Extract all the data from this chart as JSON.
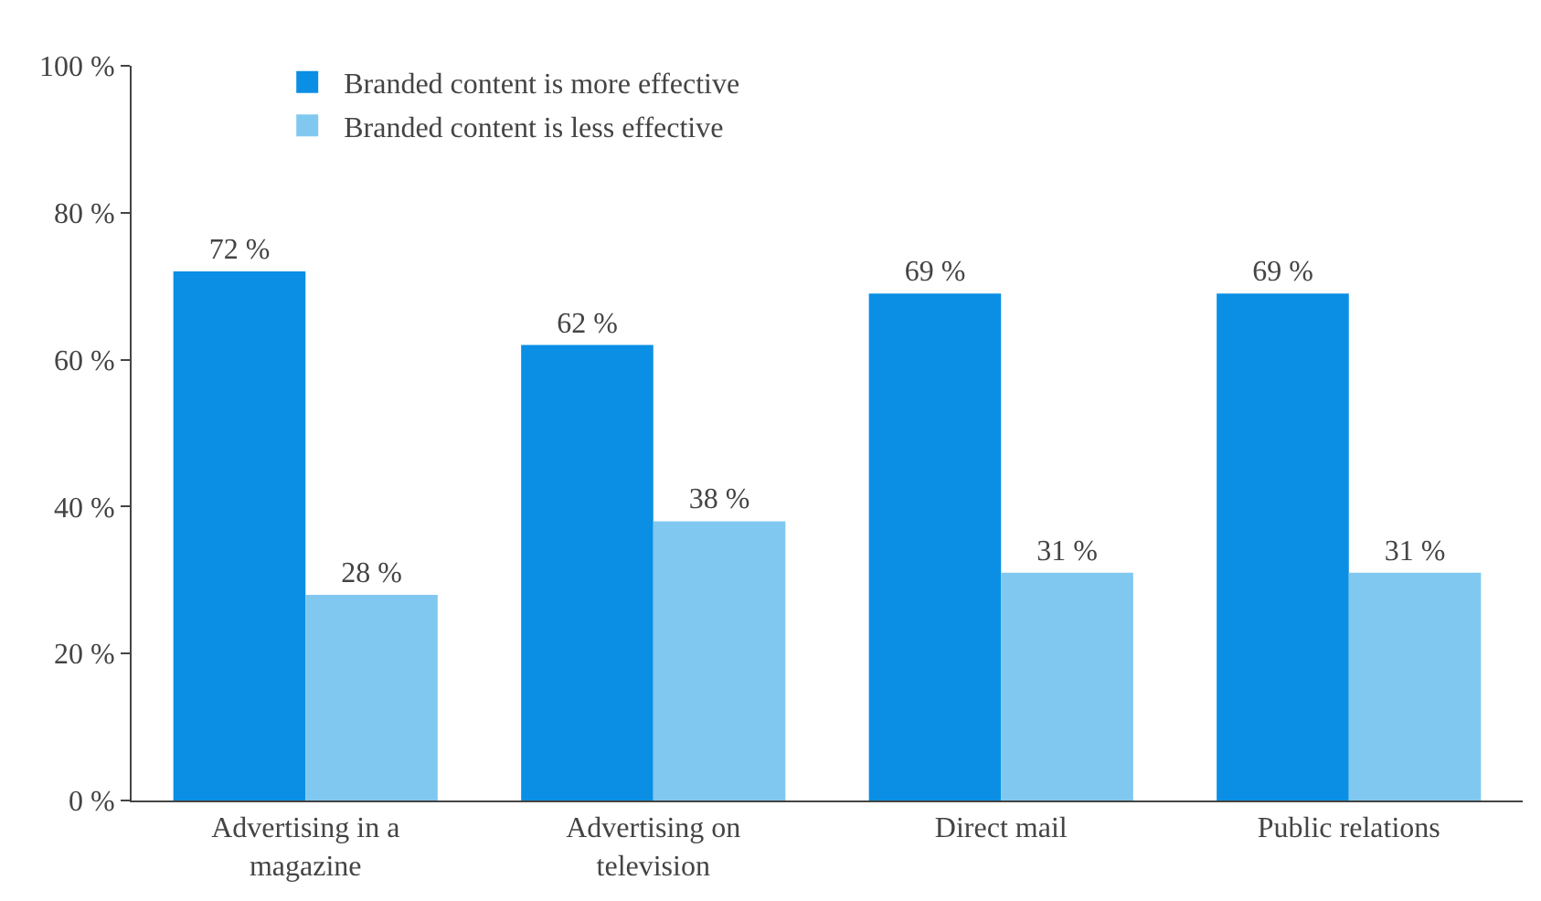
{
  "chart_data": {
    "type": "bar",
    "categories": [
      "Advertising in a magazine",
      "Advertising on television",
      "Direct mail",
      "Public relations"
    ],
    "series": [
      {
        "name": "Branded content is more effective",
        "color": "#0a8fe5",
        "values": [
          72,
          62,
          69,
          69
        ],
        "value_labels": [
          "72 %",
          "62 %",
          "69 %",
          "69 %"
        ]
      },
      {
        "name": "Branded content is less effective",
        "color": "#80c8f0",
        "values": [
          28,
          38,
          31,
          31
        ],
        "value_labels": [
          "28 %",
          "38 %",
          "31 %",
          "31 %"
        ]
      }
    ],
    "ylim": [
      0,
      100
    ],
    "yticks": [
      {
        "value": 0,
        "label": "0 %"
      },
      {
        "value": 20,
        "label": "20 %"
      },
      {
        "value": 40,
        "label": "40 %"
      },
      {
        "value": 60,
        "label": "60 %"
      },
      {
        "value": 80,
        "label": "80 %"
      },
      {
        "value": 100,
        "label": "100 %"
      }
    ],
    "legend": "top left"
  }
}
